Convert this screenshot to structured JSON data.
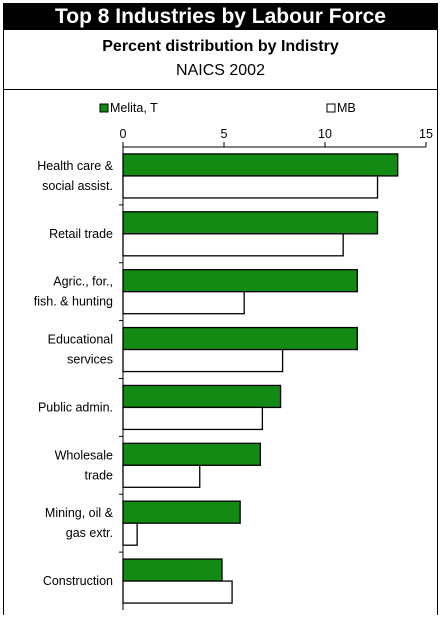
{
  "header": {
    "title": "Top 8 Industries by Labour Force",
    "subtitle": "Percent distribution by Indistry",
    "subtitle2": "NAICS 2002"
  },
  "chart_data": {
    "type": "bar",
    "orientation": "horizontal",
    "categories": [
      [
        "Health care &",
        "social assist."
      ],
      [
        "Retail trade"
      ],
      [
        "Agric., for.,",
        "fish. & hunting"
      ],
      [
        "Educational",
        "services"
      ],
      [
        "Public admin."
      ],
      [
        "Wholesale",
        "trade"
      ],
      [
        "Mining, oil &",
        "gas extr."
      ],
      [
        "Construction"
      ]
    ],
    "series": [
      {
        "name": "Melita, T",
        "color": "#138a13",
        "values": [
          13.6,
          12.6,
          11.6,
          11.6,
          7.8,
          6.8,
          5.8,
          4.9
        ]
      },
      {
        "name": "MB",
        "color": "#ffffff",
        "values": [
          12.6,
          10.9,
          6.0,
          7.9,
          6.9,
          3.8,
          0.7,
          5.4
        ]
      }
    ],
    "xlim": [
      0,
      15
    ],
    "xticks": [
      "0",
      "5",
      "10",
      "15"
    ],
    "x_axis_position": "top",
    "legend_position": "top",
    "grid": false
  }
}
